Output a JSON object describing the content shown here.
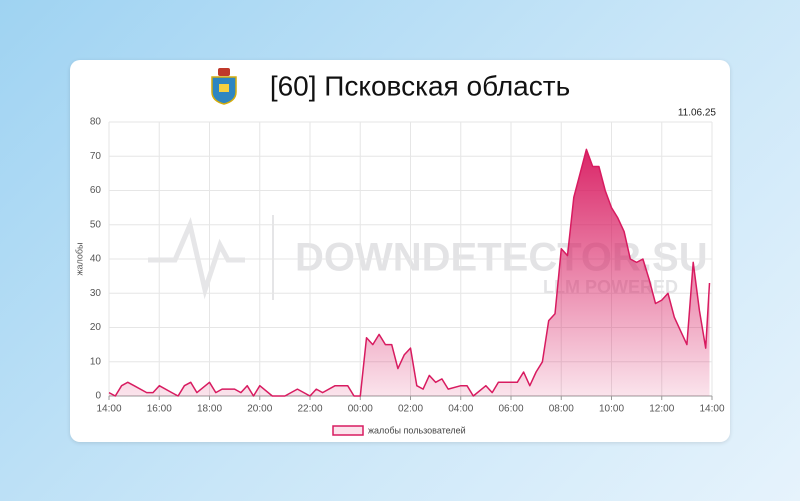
{
  "chart_data": {
    "type": "area",
    "title": "[60] Псковская область",
    "date": "11.06.25",
    "y_label": "жалобы",
    "watermark": {
      "text": "DOWNDETECTOR.SU",
      "subtext": "LLM POWERED"
    },
    "grid": true,
    "legend": "bottom",
    "xlim": [
      0,
      24
    ],
    "ylim": [
      0,
      80
    ],
    "yticks": [
      0,
      10,
      20,
      30,
      40,
      50,
      60,
      70,
      80
    ],
    "xticks": [
      {
        "value": 0,
        "label": "14:00"
      },
      {
        "value": 2,
        "label": "16:00"
      },
      {
        "value": 4,
        "label": "18:00"
      },
      {
        "value": 6,
        "label": "20:00"
      },
      {
        "value": 8,
        "label": "22:00"
      },
      {
        "value": 10,
        "label": "00:00"
      },
      {
        "value": 12,
        "label": "02:00"
      },
      {
        "value": 14,
        "label": "04:00"
      },
      {
        "value": 16,
        "label": "06:00"
      },
      {
        "value": 18,
        "label": "08:00"
      },
      {
        "value": 20,
        "label": "10:00"
      },
      {
        "value": 22,
        "label": "12:00"
      },
      {
        "value": 24,
        "label": "14:00"
      }
    ],
    "x": [
      0,
      0.25,
      0.5,
      0.75,
      1,
      1.5,
      1.75,
      2,
      2.5,
      2.75,
      3,
      3.25,
      3.5,
      4,
      4.25,
      4.5,
      5,
      5.25,
      5.5,
      5.75,
      6,
      6.5,
      7,
      7.5,
      8,
      8.25,
      8.5,
      9,
      9.5,
      9.75,
      10,
      10.25,
      10.5,
      10.75,
      11,
      11.25,
      11.5,
      11.75,
      12,
      12.25,
      12.5,
      12.75,
      13,
      13.25,
      13.5,
      14,
      14.25,
      14.5,
      15,
      15.25,
      15.5,
      16,
      16.25,
      16.5,
      16.75,
      17,
      17.25,
      17.5,
      17.75,
      18,
      18.25,
      18.5,
      18.75,
      19,
      19.25,
      19.5,
      19.75,
      20,
      20.25,
      20.5,
      20.75,
      21,
      21.25,
      21.5,
      21.75,
      22,
      22.25,
      22.5,
      22.75,
      23,
      23.25,
      23.5,
      23.75,
      23.9
    ],
    "series": [
      {
        "name": "жалобы пользователей",
        "color": "#d81b60",
        "values": [
          1,
          0,
          3,
          4,
          3,
          1,
          1,
          3,
          1,
          0,
          3,
          4,
          1,
          4,
          1,
          2,
          2,
          1,
          3,
          0,
          3,
          0,
          0,
          2,
          0,
          2,
          1,
          3,
          3,
          0,
          0,
          17,
          15,
          18,
          15,
          15,
          8,
          12,
          14,
          3,
          2,
          6,
          4,
          5,
          2,
          3,
          3,
          0,
          3,
          1,
          4,
          4,
          4,
          7,
          3,
          7,
          10,
          22,
          24,
          43,
          41,
          58,
          65,
          72,
          67,
          67,
          60,
          55,
          52,
          48,
          40,
          39,
          40,
          34,
          27,
          28,
          30,
          23,
          19,
          15,
          39,
          25,
          14,
          33
        ]
      }
    ]
  }
}
